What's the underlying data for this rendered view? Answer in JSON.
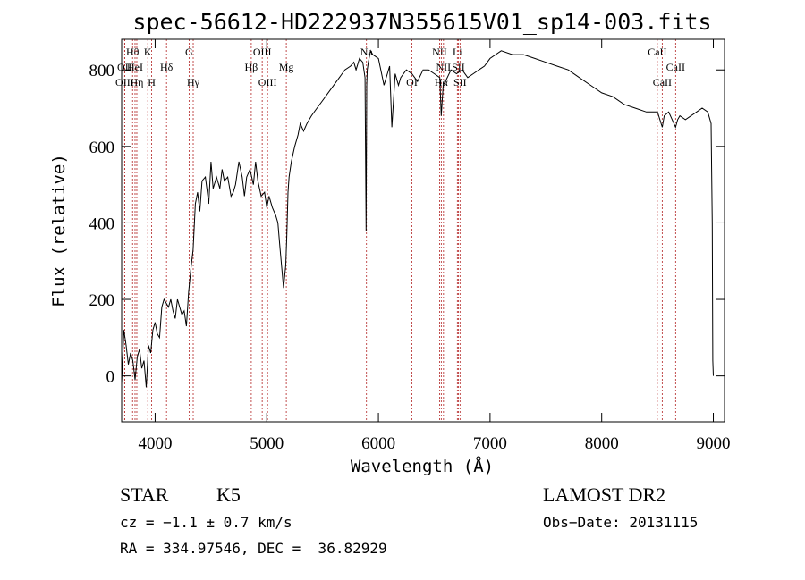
{
  "title": "spec-56612-HD222937N355615V01_sp14-003.fits",
  "chart_data": {
    "type": "line",
    "xlabel": "Wavelength (Å)",
    "ylabel": "Flux (relative)",
    "xlim": [
      3700,
      9100
    ],
    "ylim": [
      -120,
      880
    ],
    "xticks": [
      4000,
      5000,
      6000,
      7000,
      8000,
      9000
    ],
    "yticks": [
      0,
      200,
      400,
      600,
      800
    ],
    "series": [
      {
        "x": [
          3700,
          3720,
          3740,
          3760,
          3780,
          3800,
          3820,
          3840,
          3860,
          3880,
          3900,
          3920,
          3940,
          3960,
          3980,
          4000,
          4020,
          4040,
          4060,
          4080,
          4100,
          4120,
          4140,
          4160,
          4180,
          4200,
          4220,
          4240,
          4260,
          4280,
          4300,
          4320,
          4340,
          4360,
          4380,
          4400,
          4420,
          4450,
          4480,
          4500,
          4520,
          4550,
          4580,
          4600,
          4620,
          4650,
          4680,
          4700,
          4720,
          4750,
          4780,
          4800,
          4820,
          4850,
          4880,
          4900,
          4920,
          4950,
          4980,
          5000,
          5020,
          5050,
          5080,
          5100,
          5120,
          5150,
          5170,
          5180,
          5190,
          5200,
          5220,
          5250,
          5280,
          5300,
          5330,
          5360,
          5400,
          5450,
          5500,
          5550,
          5600,
          5650,
          5700,
          5750,
          5780,
          5800,
          5830,
          5860,
          5880,
          5890,
          5895,
          5900,
          5910,
          5930,
          5950,
          6000,
          6050,
          6100,
          6120,
          6150,
          6180,
          6200,
          6250,
          6300,
          6350,
          6400,
          6450,
          6500,
          6550,
          6563,
          6580,
          6600,
          6650,
          6700,
          6750,
          6800,
          6850,
          6900,
          6950,
          7000,
          7100,
          7200,
          7300,
          7400,
          7500,
          7600,
          7700,
          7800,
          7900,
          8000,
          8100,
          8200,
          8300,
          8400,
          8450,
          8500,
          8542,
          8560,
          8600,
          8662,
          8680,
          8700,
          8750,
          8800,
          8850,
          8900,
          8950,
          8980,
          8990,
          8995,
          9000
        ],
        "y": [
          -20,
          120,
          80,
          30,
          60,
          40,
          -10,
          50,
          70,
          20,
          40,
          -30,
          80,
          60,
          120,
          140,
          110,
          100,
          180,
          200,
          190,
          180,
          200,
          170,
          150,
          200,
          180,
          160,
          170,
          130,
          220,
          280,
          330,
          450,
          480,
          430,
          510,
          520,
          450,
          560,
          490,
          520,
          490,
          540,
          510,
          520,
          470,
          480,
          500,
          560,
          520,
          470,
          520,
          540,
          500,
          560,
          510,
          470,
          480,
          440,
          470,
          440,
          420,
          400,
          330,
          230,
          290,
          370,
          480,
          520,
          560,
          600,
          630,
          660,
          640,
          660,
          680,
          700,
          720,
          740,
          760,
          780,
          800,
          810,
          820,
          800,
          830,
          820,
          780,
          380,
          760,
          800,
          820,
          850,
          840,
          830,
          760,
          810,
          650,
          790,
          760,
          780,
          800,
          790,
          770,
          800,
          800,
          790,
          780,
          680,
          760,
          770,
          800,
          790,
          800,
          780,
          790,
          800,
          810,
          830,
          850,
          840,
          840,
          830,
          820,
          810,
          800,
          780,
          760,
          740,
          730,
          710,
          700,
          690,
          690,
          690,
          650,
          680,
          690,
          650,
          670,
          680,
          670,
          680,
          690,
          700,
          690,
          660,
          400,
          40,
          0
        ]
      }
    ],
    "emission_lines": [
      {
        "label": "Hθ",
        "x": 3798,
        "row": 1
      },
      {
        "label": "OII",
        "x": 3727,
        "row": 2
      },
      {
        "label": "HeI",
        "x": 3820,
        "row": 2
      },
      {
        "label": "OIII",
        "x": 3727,
        "row": 3
      },
      {
        "label": "Hη",
        "x": 3836,
        "row": 3
      },
      {
        "label": "K",
        "x": 3934,
        "row": 1
      },
      {
        "label": "H",
        "x": 3969,
        "row": 3
      },
      {
        "label": "Hδ",
        "x": 4102,
        "row": 2
      },
      {
        "label": "G",
        "x": 4304,
        "row": 1
      },
      {
        "label": "Hγ",
        "x": 4341,
        "row": 3
      },
      {
        "label": "OIII",
        "x": 4959,
        "row": 1
      },
      {
        "label": "Hβ",
        "x": 4861,
        "row": 2
      },
      {
        "label": "OIII",
        "x": 5007,
        "row": 3
      },
      {
        "label": "Mg",
        "x": 5175,
        "row": 2
      },
      {
        "label": "Na",
        "x": 5893,
        "row": 1
      },
      {
        "label": "OI",
        "x": 6300,
        "row": 3
      },
      {
        "label": "NII",
        "x": 6548,
        "row": 1
      },
      {
        "label": "NII",
        "x": 6583,
        "row": 2
      },
      {
        "label": "Li",
        "x": 6707,
        "row": 1
      },
      {
        "label": "Hα",
        "x": 6563,
        "row": 3
      },
      {
        "label": "SII",
        "x": 6716,
        "row": 2
      },
      {
        "label": "SII",
        "x": 6731,
        "row": 3
      },
      {
        "label": "CaII",
        "x": 8498,
        "row": 1
      },
      {
        "label": "CaII",
        "x": 8542,
        "row": 3
      },
      {
        "label": "CaII",
        "x": 8662,
        "row": 2
      }
    ]
  },
  "info": {
    "object_class": "STAR",
    "subclass": "K5",
    "survey": "LAMOST DR2",
    "cz": "cz = −1.1 ± 0.7 km/s",
    "obs_date": "Obs−Date: 20131115",
    "coords": "RA = 334.97546, DEC =  36.82929"
  },
  "colors": {
    "spectrum": "#000000",
    "line_marker": "#b22222"
  }
}
